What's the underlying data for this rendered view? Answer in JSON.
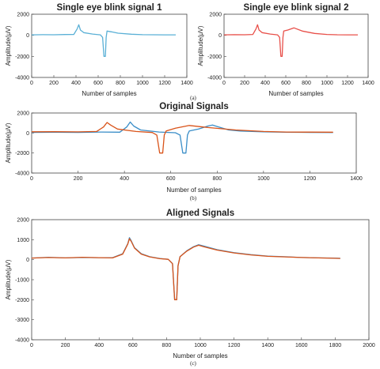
{
  "colors": {
    "blue": "#3a8ec8",
    "light_blue": "#5ab0d6",
    "orange": "#d95319",
    "red": "#e8504a"
  },
  "chart_data": [
    {
      "id": "a1",
      "type": "line",
      "title": "Single eye blink signal 1",
      "xlabel": "Number of samples",
      "ylabel": "Amplitude(μV)",
      "xlim": [
        0,
        1400
      ],
      "ylim": [
        -4000,
        2000
      ],
      "xticks": [
        0,
        200,
        400,
        600,
        800,
        1000,
        1200,
        1400
      ],
      "yticks": [
        -4000,
        -2000,
        0,
        2000
      ],
      "caption": "(a)",
      "series": [
        {
          "color": "#5ab0d6",
          "points": [
            [
              0,
              40
            ],
            [
              100,
              60
            ],
            [
              200,
              50
            ],
            [
              300,
              70
            ],
            [
              380,
              80
            ],
            [
              410,
              600
            ],
            [
              425,
              1000
            ],
            [
              440,
              500
            ],
            [
              470,
              250
            ],
            [
              550,
              120
            ],
            [
              620,
              40
            ],
            [
              640,
              -200
            ],
            [
              652,
              -2000
            ],
            [
              665,
              -2000
            ],
            [
              672,
              -200
            ],
            [
              680,
              400
            ],
            [
              720,
              330
            ],
            [
              780,
              200
            ],
            [
              900,
              100
            ],
            [
              1000,
              60
            ],
            [
              1100,
              50
            ],
            [
              1200,
              40
            ],
            [
              1300,
              40
            ]
          ]
        }
      ]
    },
    {
      "id": "a2",
      "type": "line",
      "title": "Single eye blink signal 2",
      "xlabel": "Number of samples",
      "ylabel": "Amplitude(μV)",
      "xlim": [
        0,
        1400
      ],
      "ylim": [
        -4000,
        2000
      ],
      "xticks": [
        0,
        200,
        400,
        600,
        800,
        1000,
        1200,
        1400
      ],
      "yticks": [
        -4000,
        -2000,
        0,
        2000
      ],
      "series": [
        {
          "color": "#e8504a",
          "points": [
            [
              0,
              40
            ],
            [
              100,
              60
            ],
            [
              200,
              50
            ],
            [
              280,
              80
            ],
            [
              310,
              600
            ],
            [
              325,
              1000
            ],
            [
              340,
              500
            ],
            [
              370,
              250
            ],
            [
              450,
              120
            ],
            [
              520,
              40
            ],
            [
              540,
              -200
            ],
            [
              552,
              -2000
            ],
            [
              565,
              -2000
            ],
            [
              572,
              -200
            ],
            [
              580,
              400
            ],
            [
              620,
              500
            ],
            [
              680,
              700
            ],
            [
              760,
              400
            ],
            [
              880,
              180
            ],
            [
              1000,
              80
            ],
            [
              1100,
              50
            ],
            [
              1200,
              40
            ],
            [
              1300,
              40
            ]
          ]
        }
      ]
    },
    {
      "id": "b",
      "type": "line",
      "title": "Original Signals",
      "xlabel": "Number of samples",
      "ylabel": "Amplitude(μV)",
      "xlim": [
        0,
        1400
      ],
      "ylim": [
        -4000,
        2000
      ],
      "xticks": [
        0,
        200,
        400,
        600,
        800,
        1000,
        1200,
        1400
      ],
      "yticks": [
        -4000,
        -2000,
        0,
        2000
      ],
      "caption": "(b)",
      "series": [
        {
          "color": "#3a8ec8",
          "points": [
            [
              0,
              60
            ],
            [
              100,
              80
            ],
            [
              200,
              60
            ],
            [
              300,
              100
            ],
            [
              380,
              80
            ],
            [
              410,
              600
            ],
            [
              425,
              1100
            ],
            [
              440,
              700
            ],
            [
              470,
              300
            ],
            [
              550,
              100
            ],
            [
              620,
              30
            ],
            [
              640,
              -200
            ],
            [
              652,
              -2000
            ],
            [
              665,
              -2000
            ],
            [
              672,
              -200
            ],
            [
              680,
              200
            ],
            [
              720,
              400
            ],
            [
              760,
              700
            ],
            [
              780,
              800
            ],
            [
              800,
              650
            ],
            [
              850,
              300
            ],
            [
              900,
              200
            ],
            [
              1000,
              120
            ],
            [
              1100,
              80
            ],
            [
              1200,
              60
            ],
            [
              1300,
              50
            ]
          ]
        },
        {
          "color": "#d95319",
          "points": [
            [
              0,
              120
            ],
            [
              100,
              130
            ],
            [
              200,
              110
            ],
            [
              280,
              150
            ],
            [
              310,
              600
            ],
            [
              325,
              1050
            ],
            [
              340,
              800
            ],
            [
              370,
              400
            ],
            [
              450,
              150
            ],
            [
              520,
              50
            ],
            [
              540,
              -200
            ],
            [
              552,
              -2000
            ],
            [
              565,
              -2000
            ],
            [
              572,
              -200
            ],
            [
              580,
              200
            ],
            [
              620,
              480
            ],
            [
              680,
              750
            ],
            [
              760,
              550
            ],
            [
              880,
              300
            ],
            [
              1000,
              150
            ],
            [
              1100,
              100
            ],
            [
              1200,
              90
            ],
            [
              1300,
              80
            ]
          ]
        }
      ]
    },
    {
      "id": "c",
      "type": "line",
      "title": "Aligned Signals",
      "xlabel": "Number of samples",
      "ylabel": "Amplitude(μV)",
      "xlim": [
        0,
        2000
      ],
      "ylim": [
        -4000,
        2000
      ],
      "xticks": [
        0,
        200,
        400,
        600,
        800,
        1000,
        1200,
        1400,
        1600,
        1800,
        2000
      ],
      "yticks": [
        -4000,
        -3000,
        -2000,
        -1000,
        0,
        1000,
        2000
      ],
      "caption": "(c)",
      "series": [
        {
          "color": "#3a8ec8",
          "points": [
            [
              0,
              80
            ],
            [
              100,
              120
            ],
            [
              200,
              90
            ],
            [
              300,
              110
            ],
            [
              400,
              100
            ],
            [
              480,
              100
            ],
            [
              540,
              300
            ],
            [
              570,
              800
            ],
            [
              580,
              1100
            ],
            [
              590,
              950
            ],
            [
              610,
              600
            ],
            [
              650,
              300
            ],
            [
              700,
              150
            ],
            [
              760,
              60
            ],
            [
              810,
              20
            ],
            [
              835,
              -200
            ],
            [
              848,
              -2000
            ],
            [
              860,
              -2000
            ],
            [
              868,
              -300
            ],
            [
              880,
              150
            ],
            [
              920,
              450
            ],
            [
              960,
              650
            ],
            [
              990,
              750
            ],
            [
              1020,
              680
            ],
            [
              1100,
              500
            ],
            [
              1200,
              350
            ],
            [
              1300,
              250
            ],
            [
              1400,
              180
            ],
            [
              1500,
              150
            ],
            [
              1600,
              110
            ],
            [
              1700,
              90
            ],
            [
              1800,
              80
            ],
            [
              1830,
              70
            ]
          ]
        },
        {
          "color": "#d95319",
          "points": [
            [
              0,
              80
            ],
            [
              100,
              110
            ],
            [
              200,
              90
            ],
            [
              300,
              120
            ],
            [
              400,
              100
            ],
            [
              480,
              90
            ],
            [
              540,
              280
            ],
            [
              570,
              780
            ],
            [
              580,
              1050
            ],
            [
              590,
              920
            ],
            [
              610,
              580
            ],
            [
              650,
              280
            ],
            [
              700,
              140
            ],
            [
              760,
              50
            ],
            [
              810,
              20
            ],
            [
              835,
              -200
            ],
            [
              848,
              -2000
            ],
            [
              860,
              -2000
            ],
            [
              868,
              -300
            ],
            [
              880,
              150
            ],
            [
              920,
              430
            ],
            [
              960,
              630
            ],
            [
              990,
              720
            ],
            [
              1020,
              650
            ],
            [
              1100,
              480
            ],
            [
              1200,
              340
            ],
            [
              1300,
              240
            ],
            [
              1400,
              170
            ],
            [
              1500,
              140
            ],
            [
              1600,
              110
            ],
            [
              1700,
              90
            ],
            [
              1800,
              70
            ],
            [
              1830,
              60
            ]
          ]
        }
      ]
    }
  ]
}
